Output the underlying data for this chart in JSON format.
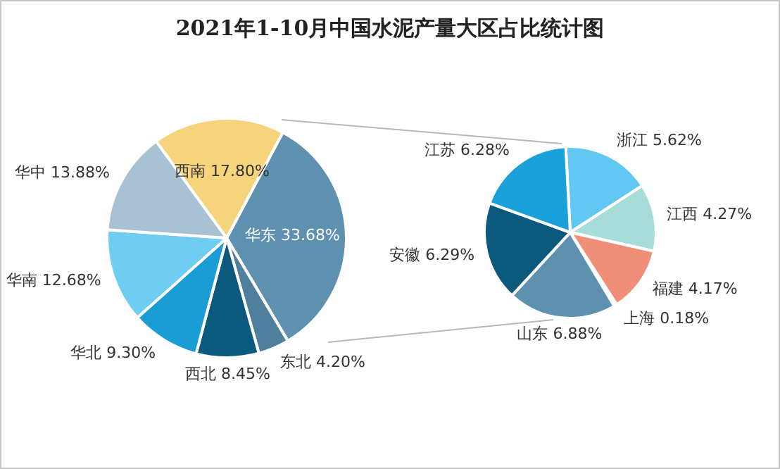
{
  "chart_data": [
    {
      "type": "pie",
      "title": "2021年1-10月中国水泥产量大区占比统计图",
      "categories": [
        "华东",
        "东北",
        "西北",
        "华北",
        "华南",
        "华中",
        "西南"
      ],
      "values": [
        33.68,
        4.2,
        8.45,
        9.3,
        12.68,
        13.88,
        17.8
      ],
      "colors": [
        "#5e90b0",
        "#4f7f9c",
        "#0b5a7d",
        "#1a9dd4",
        "#6fcdf2",
        "#a9c2d3",
        "#f6d47b"
      ],
      "value_labels": [
        "33.68%",
        "4.20%",
        "8.45%",
        "9.30%",
        "12.68%",
        "13.88%",
        "17.80%"
      ],
      "legend": false
    },
    {
      "type": "pie",
      "categories": [
        "浙江",
        "江西",
        "福建",
        "上海",
        "山东",
        "安徽",
        "江苏"
      ],
      "values": [
        5.62,
        4.27,
        4.17,
        0.18,
        6.88,
        6.29,
        6.28
      ],
      "colors": [
        "#62c8f3",
        "#a8dcd8",
        "#ef8f78",
        "#7fa0b5",
        "#5e90b0",
        "#0b5a7d",
        "#1aa1d9"
      ],
      "value_labels": [
        "5.62%",
        "4.27%",
        "4.17%",
        "0.18%",
        "6.88%",
        "6.29%",
        "6.28%"
      ],
      "legend": false
    }
  ]
}
